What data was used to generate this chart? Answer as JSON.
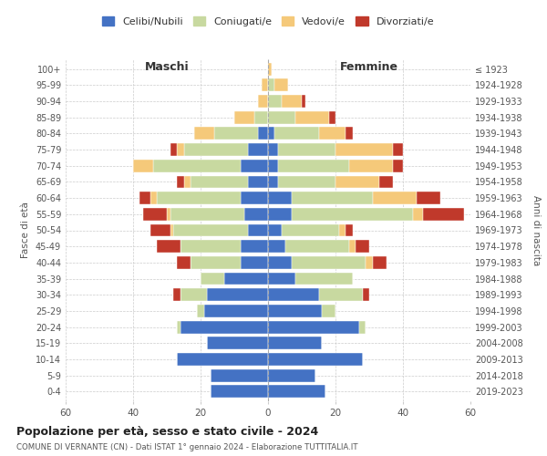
{
  "age_groups": [
    "0-4",
    "5-9",
    "10-14",
    "15-19",
    "20-24",
    "25-29",
    "30-34",
    "35-39",
    "40-44",
    "45-49",
    "50-54",
    "55-59",
    "60-64",
    "65-69",
    "70-74",
    "75-79",
    "80-84",
    "85-89",
    "90-94",
    "95-99",
    "100+"
  ],
  "birth_years": [
    "2019-2023",
    "2014-2018",
    "2009-2013",
    "2004-2008",
    "1999-2003",
    "1994-1998",
    "1989-1993",
    "1984-1988",
    "1979-1983",
    "1974-1978",
    "1969-1973",
    "1964-1968",
    "1959-1963",
    "1954-1958",
    "1949-1953",
    "1944-1948",
    "1939-1943",
    "1934-1938",
    "1929-1933",
    "1924-1928",
    "≤ 1923"
  ],
  "colors": {
    "celibi": "#4472c4",
    "coniugati": "#c8d9a0",
    "vedovi": "#f5c97a",
    "divorziati": "#c0392b"
  },
  "maschi": {
    "celibi": [
      17,
      17,
      27,
      18,
      26,
      19,
      18,
      13,
      8,
      8,
      6,
      7,
      8,
      6,
      8,
      6,
      3,
      0,
      0,
      0,
      0
    ],
    "coniugati": [
      0,
      0,
      0,
      0,
      1,
      2,
      8,
      7,
      15,
      18,
      22,
      22,
      25,
      17,
      26,
      19,
      13,
      4,
      0,
      0,
      0
    ],
    "vedovi": [
      0,
      0,
      0,
      0,
      0,
      0,
      0,
      0,
      0,
      0,
      1,
      1,
      2,
      2,
      6,
      2,
      6,
      6,
      3,
      2,
      0
    ],
    "divorziati": [
      0,
      0,
      0,
      0,
      0,
      0,
      2,
      0,
      4,
      7,
      6,
      7,
      3,
      2,
      0,
      2,
      0,
      0,
      0,
      0,
      0
    ]
  },
  "femmine": {
    "celibi": [
      17,
      14,
      28,
      16,
      27,
      16,
      15,
      8,
      7,
      5,
      4,
      7,
      7,
      3,
      3,
      3,
      2,
      0,
      0,
      0,
      0
    ],
    "coniugati": [
      0,
      0,
      0,
      0,
      2,
      4,
      13,
      17,
      22,
      19,
      17,
      36,
      24,
      17,
      21,
      17,
      13,
      8,
      4,
      2,
      0
    ],
    "vedovi": [
      0,
      0,
      0,
      0,
      0,
      0,
      0,
      0,
      2,
      2,
      2,
      3,
      13,
      13,
      13,
      17,
      8,
      10,
      6,
      4,
      1
    ],
    "divorziati": [
      0,
      0,
      0,
      0,
      0,
      0,
      2,
      0,
      4,
      4,
      2,
      12,
      7,
      4,
      3,
      3,
      2,
      2,
      1,
      0,
      0
    ]
  },
  "title": "Popolazione per età, sesso e stato civile - 2024",
  "subtitle": "COMUNE DI VERNANTE (CN) - Dati ISTAT 1° gennaio 2024 - Elaborazione TUTTITALIA.IT",
  "xlabel_left": "Maschi",
  "xlabel_right": "Femmine",
  "ylabel_left": "Fasce di età",
  "ylabel_right": "Anni di nascita",
  "xlim": 60,
  "legend_labels": [
    "Celibi/Nubili",
    "Coniugati/e",
    "Vedovi/e",
    "Divorziati/e"
  ],
  "background_color": "#ffffff"
}
